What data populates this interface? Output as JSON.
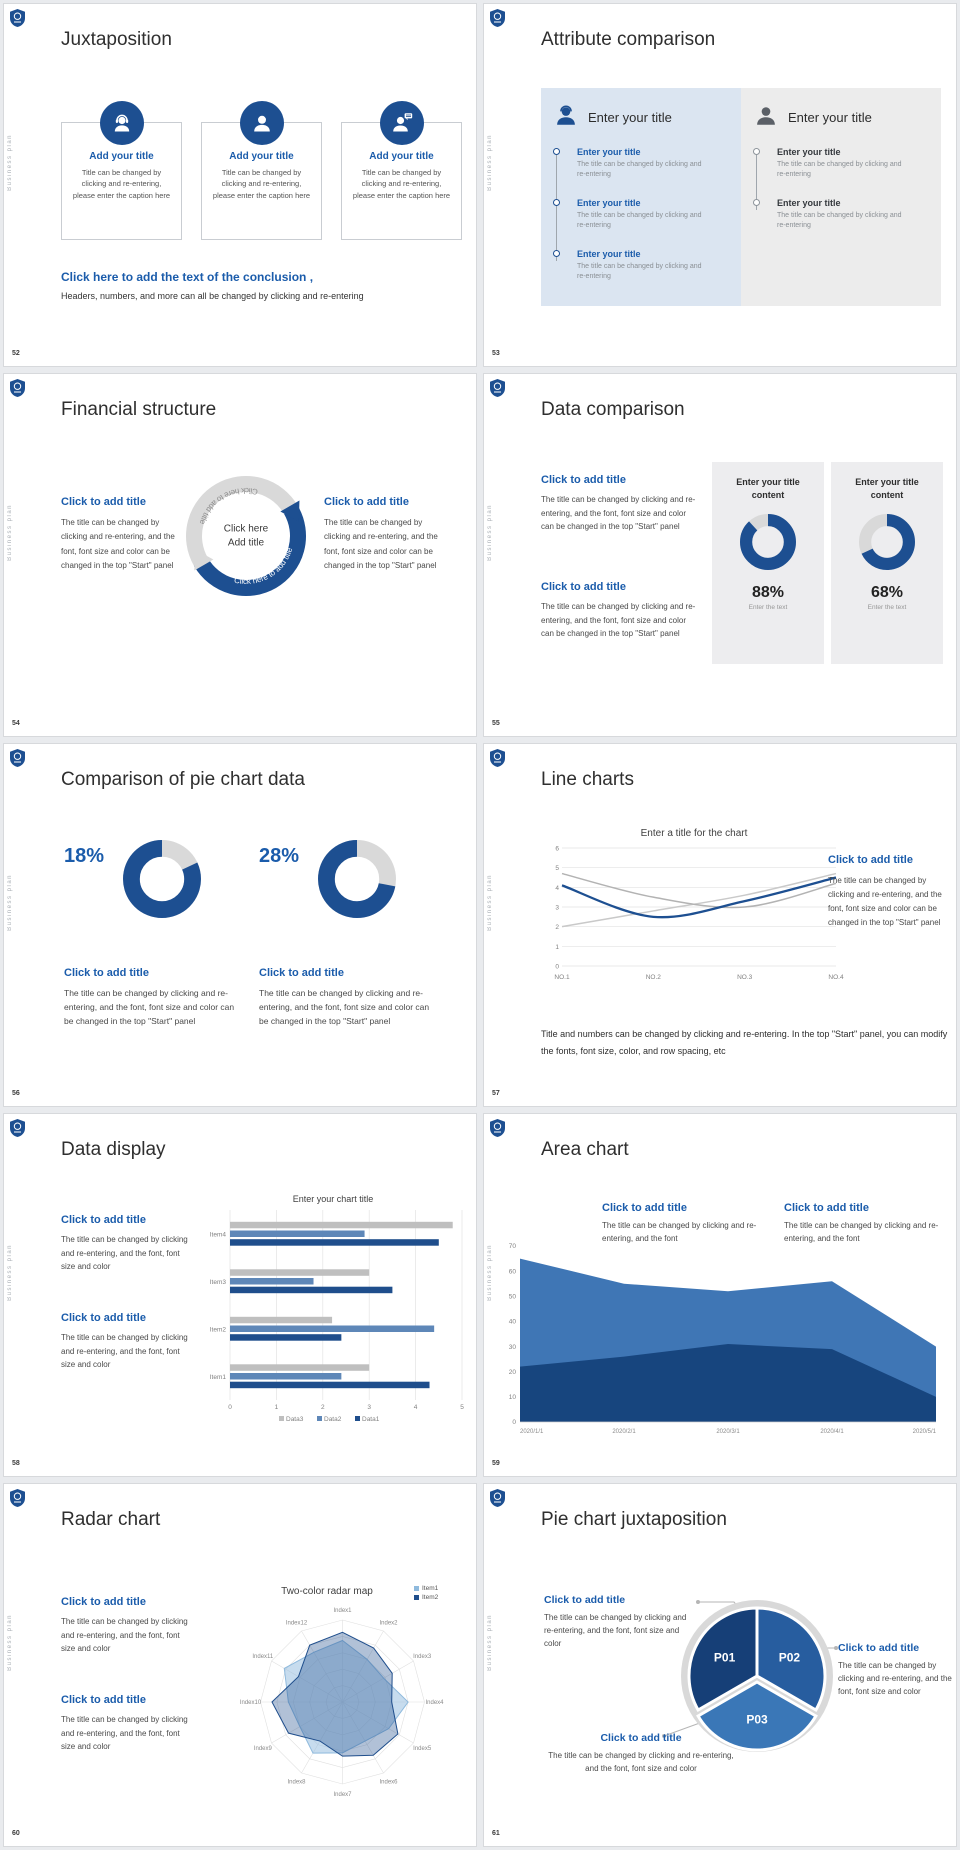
{
  "global": {
    "vertical_label": "Business plan"
  },
  "slides": {
    "s52": {
      "number": "52",
      "title": "Juxtaposition",
      "cards": [
        {
          "title": "Add your title",
          "body": "Title can be changed by clicking and re-entering, please enter the caption here"
        },
        {
          "title": "Add your title",
          "body": "Title can be changed by clicking and re-entering, please enter the caption here"
        },
        {
          "title": "Add your title",
          "body": "Title can be changed by clicking and re-entering, please enter the caption here"
        }
      ],
      "conclusion_title": "Click here to add the text of the conclusion ,",
      "conclusion_body": "Headers, numbers, and more can all be changed by clicking and re-entering"
    },
    "s53": {
      "number": "53",
      "title": "Attribute comparison",
      "left_panel": {
        "header": "Enter your title",
        "items": [
          {
            "title": "Enter your title",
            "body": "The title can be changed by clicking and re-entering"
          },
          {
            "title": "Enter your title",
            "body": "The title can be changed by clicking and re-entering"
          },
          {
            "title": "Enter your title",
            "body": "The title can be changed by clicking and re-entering"
          }
        ]
      },
      "right_panel": {
        "header": "Enter your title",
        "items": [
          {
            "title": "Enter your title",
            "body": "The title can be changed by clicking and re-entering"
          },
          {
            "title": "Enter your title",
            "body": "The title can be changed by clicking and re-entering"
          }
        ]
      }
    },
    "s54": {
      "number": "54",
      "title": "Financial structure",
      "left_heading": "Click to add title",
      "left_body": "The title can be changed by clicking and re-entering, and the font, font size and color can be changed in the top \"Start\" panel",
      "right_heading": "Click to add title",
      "right_body": "The title can be changed by clicking and re-entering, and the font, font size and color can be changed in the top \"Start\" panel",
      "center_line1": "Click here",
      "center_line2": "Add title",
      "arc_label_top": "Click here to add title",
      "arc_label_bottom": "Click here to add title"
    },
    "s55": {
      "number": "55",
      "title": "Data comparison",
      "blocks": [
        {
          "heading": "Click to add title",
          "body": "The title can be changed by clicking and re-entering, and the font, font size and color can be changed in the top \"Start\" panel"
        },
        {
          "heading": "Click to add title",
          "body": "The title can be changed by clicking and re-entering, and the font, font size and color can be changed in the top \"Start\" panel"
        }
      ],
      "cards": [
        {
          "header": "Enter your title content",
          "pct": "88%",
          "sub": "Enter the text"
        },
        {
          "header": "Enter your title content",
          "pct": "68%",
          "sub": "Enter the text"
        }
      ]
    },
    "s56": {
      "number": "56",
      "title": "Comparison of pie chart data",
      "groups": [
        {
          "pct": "18%",
          "heading": "Click to add title",
          "body": "The title can be changed by clicking and re-entering, and the font, font size and color can be changed in the top \"Start\" panel"
        },
        {
          "pct": "28%",
          "heading": "Click to add title",
          "body": "The title can be changed by clicking and re-entering, and the font, font size and color can be changed in the top \"Start\" panel"
        }
      ]
    },
    "s57": {
      "number": "57",
      "title": "Line charts",
      "side_heading": "Click to add title",
      "side_body": "The title can be changed by clicking and re-entering, and the font, font size and color can be changed in the top \"Start\" panel",
      "footer": "Title and numbers can be changed by clicking and re-entering. In the top \"Start\" panel, you can modify the fonts, font size, color, and row spacing, etc"
    },
    "s58": {
      "number": "58",
      "title": "Data display",
      "blocks": [
        {
          "heading": "Click to add title",
          "body": "The title can be changed by clicking and re-entering, and the font, font size and color"
        },
        {
          "heading": "Click to add title",
          "body": "The title can be changed by clicking and re-entering, and the font, font size and color"
        }
      ]
    },
    "s59": {
      "number": "59",
      "title": "Area chart",
      "blocks": [
        {
          "heading": "Click to add title",
          "body": "The title can be changed by clicking and re-entering, and the font"
        },
        {
          "heading": "Click to add title",
          "body": "The title can be changed by clicking and re-entering, and the font"
        }
      ]
    },
    "s60": {
      "number": "60",
      "title": "Radar chart",
      "blocks": [
        {
          "heading": "Click to add title",
          "body": "The title can be changed by clicking and re-entering, and the font, font size and color"
        },
        {
          "heading": "Click to add title",
          "body": "The title can be changed by clicking and re-entering, and the font, font size and color"
        }
      ]
    },
    "s61": {
      "number": "61",
      "title": "Pie chart juxtaposition",
      "blocks": [
        {
          "heading": "Click to add title",
          "body": "The title can be changed by clicking and re-entering, and the font, font size and color"
        },
        {
          "heading": "Click to add title",
          "body": "The title can be changed by clicking and re-entering, and the font, font size and color"
        },
        {
          "heading": "Click to add title",
          "body": "The title can be changed by clicking and re-entering, and the font, font size and color"
        }
      ]
    }
  },
  "chart_data": [
    {
      "id": "d88",
      "type": "donut",
      "blue": 88,
      "gray": 12,
      "label": "88%",
      "color": "#1d4f91",
      "track": "#d9d9d9",
      "gray_first": false
    },
    {
      "id": "d68",
      "type": "donut",
      "blue": 68,
      "gray": 32,
      "label": "68%",
      "color": "#1d4f91",
      "track": "#d9d9d9",
      "gray_first": false
    },
    {
      "id": "d18",
      "type": "donut",
      "blue": 82,
      "gray": 18,
      "label": "18%",
      "color": "#1d4f91",
      "track": "#d9d9d9",
      "gray_first": true
    },
    {
      "id": "d28",
      "type": "donut",
      "blue": 72,
      "gray": 28,
      "label": "28%",
      "color": "#1d4f91",
      "track": "#d9d9d9",
      "gray_first": true
    },
    {
      "id": "line57",
      "type": "line",
      "title": "Enter a title for the chart",
      "categories": [
        "NO.1",
        "NO.2",
        "NO.3",
        "NO.4"
      ],
      "ylim": [
        0,
        6
      ],
      "ytick_step": 1,
      "grid": true,
      "legend": "none",
      "series": [
        {
          "name": "gray-series-1",
          "color": "#c9c9c9",
          "width": 1.5,
          "values": [
            2.0,
            2.8,
            3.6,
            4.7
          ]
        },
        {
          "name": "gray-series-2",
          "color": "#b3b3b3",
          "width": 1.5,
          "values": [
            4.7,
            3.5,
            3.0,
            4.2
          ]
        },
        {
          "name": "blue-series",
          "color": "#1d4f91",
          "width": 2.3,
          "values": [
            4.1,
            2.5,
            3.3,
            4.5
          ]
        }
      ]
    },
    {
      "id": "hbar58",
      "type": "bar-horizontal",
      "title": "Enter your chart title",
      "categories": [
        "Item1",
        "Item2",
        "Item3",
        "Item4"
      ],
      "xlim": [
        0,
        5
      ],
      "xticks": [
        0,
        1,
        2,
        3,
        4,
        5
      ],
      "series": [
        {
          "name": "Data1",
          "color": "#1f4e8c",
          "values": [
            4.3,
            2.4,
            3.5,
            4.5
          ]
        },
        {
          "name": "Data2",
          "color": "#5e87b8",
          "values": [
            2.4,
            4.4,
            1.8,
            2.9
          ]
        },
        {
          "name": "Data3",
          "color": "#bfbfbf",
          "values": [
            3.0,
            2.2,
            3.0,
            4.8
          ]
        }
      ],
      "legend_order": [
        "Data3",
        "Data2",
        "Data1"
      ],
      "legend_position": "bottom"
    },
    {
      "id": "area59",
      "type": "area",
      "categories": [
        "2020/1/1",
        "2020/2/1",
        "2020/3/1",
        "2020/4/1",
        "2020/5/1"
      ],
      "ylim": [
        0,
        70
      ],
      "ytick_step": 10,
      "series": [
        {
          "name": "upper-area",
          "color": "#3f76b5",
          "values": [
            65,
            55,
            52,
            56,
            30
          ]
        },
        {
          "name": "lower-area",
          "color": "#17457e",
          "values": [
            22,
            26,
            31,
            29,
            10
          ]
        }
      ]
    },
    {
      "id": "radar60",
      "type": "radar",
      "title": "Two-color radar map",
      "rmax": 100,
      "rings": 5,
      "axes": [
        "Index1",
        "Index2",
        "Index3",
        "Index4",
        "Index5",
        "Index6",
        "Index7",
        "Index8",
        "Index9",
        "Index10",
        "Index11",
        "Index12"
      ],
      "series": [
        {
          "name": "Item1",
          "color": "#8fbadd",
          "fill_opacity": 0.5,
          "values": [
            75,
            60,
            58,
            80,
            65,
            55,
            62,
            72,
            60,
            66,
            82,
            70
          ]
        },
        {
          "name": "Item2",
          "color": "#1f4e8c",
          "fill_opacity": 0.35,
          "values": [
            85,
            76,
            70,
            60,
            78,
            75,
            66,
            55,
            76,
            86,
            62,
            80
          ]
        }
      ],
      "legend_position": "top-right"
    },
    {
      "id": "pie61",
      "type": "pie",
      "slices": [
        {
          "label": "P01",
          "start": 240,
          "end": 360,
          "color": "#163f77"
        },
        {
          "label": "P02",
          "start": 0,
          "end": 120,
          "color": "#275d9f"
        },
        {
          "label": "P03",
          "start": 120,
          "end": 240,
          "color": "#3a77b7",
          "offset_y": 6
        }
      ]
    }
  ]
}
